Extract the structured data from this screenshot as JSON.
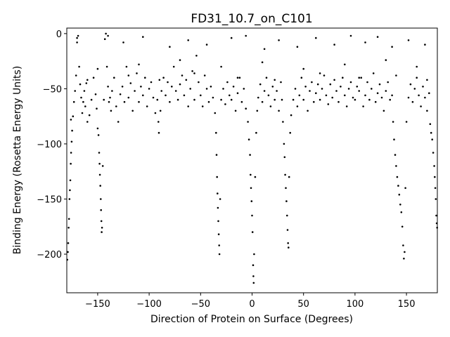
{
  "chart_data": {
    "type": "scatter",
    "title": "FD31_10.7_on_C101",
    "xlabel": "Direction of Protein on Surface (Degrees)",
    "ylabel": "Binding Energy (Rosetta Energy Units)",
    "xlim": [
      -180,
      180
    ],
    "ylim": [
      -235,
      5
    ],
    "xticks": [
      -150,
      -100,
      -50,
      0,
      50,
      100,
      150
    ],
    "yticks": [
      0,
      -50,
      -100,
      -150,
      -200
    ],
    "tick_labels_x": [
      "−150",
      "−100",
      "−50",
      "0",
      "50",
      "100",
      "150"
    ],
    "tick_labels_y": [
      "0",
      "−50",
      "−100",
      "−150",
      "−200"
    ],
    "grid": false,
    "marker_color": "#000000",
    "series": [
      {
        "values": [
          [
            -179.5,
            -205
          ],
          [
            -179,
            -198
          ],
          [
            -178.6,
            -190
          ],
          [
            -178.2,
            -176
          ],
          [
            -177.8,
            -168
          ],
          [
            -177.4,
            -150
          ],
          [
            -177,
            -142
          ],
          [
            -176.6,
            -133
          ],
          [
            -176.2,
            -118
          ],
          [
            -175.8,
            -108
          ],
          [
            -175.3,
            -98
          ],
          [
            -174.8,
            -88
          ],
          [
            -174,
            -75
          ],
          [
            -173,
            -62
          ],
          [
            -172,
            -52
          ],
          [
            -171,
            -38
          ],
          [
            -170,
            -8
          ],
          [
            -169,
            -2
          ],
          [
            -168,
            -30
          ],
          [
            -167,
            -46
          ],
          [
            -166,
            -58
          ],
          [
            -165,
            -72
          ],
          [
            -164,
            -62
          ],
          [
            -163,
            -52
          ],
          [
            -162,
            -66
          ],
          [
            -161,
            -45
          ],
          [
            -160,
            -80
          ],
          [
            -158,
            -74
          ],
          [
            -156,
            -60
          ],
          [
            -154,
            -40
          ],
          [
            -152,
            -55
          ],
          [
            -151,
            -68
          ],
          [
            -150,
            -86
          ],
          [
            -149.2,
            -92
          ],
          [
            -148.6,
            -108
          ],
          [
            -148.2,
            -118
          ],
          [
            -147.8,
            -128
          ],
          [
            -147.4,
            -138
          ],
          [
            -147,
            -150
          ],
          [
            -146.7,
            -160
          ],
          [
            -146.4,
            -170
          ],
          [
            -146.1,
            -180
          ],
          [
            -145.8,
            -176
          ],
          [
            -145,
            -120
          ],
          [
            -144,
            -60
          ],
          [
            -143,
            -5
          ],
          [
            -142,
            0
          ],
          [
            -141,
            -30
          ],
          [
            -140,
            -48
          ],
          [
            -139,
            -62
          ],
          [
            -138,
            -58
          ],
          [
            -137,
            -70
          ],
          [
            -136,
            -52
          ],
          [
            -134,
            -40
          ],
          [
            -132,
            -66
          ],
          [
            -130,
            -80
          ],
          [
            -128,
            -55
          ],
          [
            -126,
            -48
          ],
          [
            -124,
            -62
          ],
          [
            -122,
            -30
          ],
          [
            -120,
            -58
          ],
          [
            -118,
            -45
          ],
          [
            -116,
            -70
          ],
          [
            -114,
            -52
          ],
          [
            -112,
            -36
          ],
          [
            -110,
            -62
          ],
          [
            -108,
            -48
          ],
          [
            -106,
            -56
          ],
          [
            -104,
            -40
          ],
          [
            -102,
            -66
          ],
          [
            -100,
            -50
          ],
          [
            -98,
            -44
          ],
          [
            -96,
            -58
          ],
          [
            -94,
            -72
          ],
          [
            -92,
            -60
          ],
          [
            -91,
            -80
          ],
          [
            -90.5,
            -90
          ],
          [
            -89,
            -70
          ],
          [
            -88,
            -52
          ],
          [
            -86,
            -40
          ],
          [
            -84,
            -56
          ],
          [
            -82,
            -44
          ],
          [
            -80,
            -62
          ],
          [
            -78,
            -48
          ],
          [
            -76,
            -30
          ],
          [
            -74,
            -52
          ],
          [
            -72,
            -60
          ],
          [
            -70,
            -46
          ],
          [
            -68,
            -38
          ],
          [
            -66,
            -56
          ],
          [
            -64,
            -42
          ],
          [
            -62,
            -66
          ],
          [
            -60,
            -50
          ],
          [
            -58,
            -34
          ],
          [
            -56,
            -60
          ],
          [
            -54,
            -20
          ],
          [
            -52,
            -44
          ],
          [
            -50,
            -56
          ],
          [
            -48,
            -66
          ],
          [
            -46,
            -38
          ],
          [
            -44,
            -50
          ],
          [
            -42,
            -62
          ],
          [
            -40,
            -48
          ],
          [
            -38,
            -58
          ],
          [
            -36,
            -72
          ],
          [
            -35,
            -90
          ],
          [
            -34.5,
            -110
          ],
          [
            -34,
            -130
          ],
          [
            -33.6,
            -145
          ],
          [
            -33.2,
            -158
          ],
          [
            -32.8,
            -170
          ],
          [
            -32.4,
            -182
          ],
          [
            -32,
            -192
          ],
          [
            -31.7,
            -200
          ],
          [
            -31,
            -150
          ],
          [
            -30,
            -60
          ],
          [
            -28,
            -50
          ],
          [
            -26,
            -64
          ],
          [
            -24,
            -44
          ],
          [
            -22,
            -56
          ],
          [
            -20,
            -60
          ],
          [
            -18,
            -48
          ],
          [
            -16,
            -70
          ],
          [
            -14,
            -54
          ],
          [
            -12,
            -40
          ],
          [
            -10,
            -62
          ],
          [
            -8,
            -50
          ],
          [
            -6,
            -68
          ],
          [
            -4,
            -80
          ],
          [
            -3,
            -96
          ],
          [
            -2,
            -110
          ],
          [
            -1.5,
            -128
          ],
          [
            -1,
            -140
          ],
          [
            -0.5,
            -152
          ],
          [
            0,
            -165
          ],
          [
            0.5,
            -180
          ],
          [
            1,
            -210
          ],
          [
            1.3,
            -220
          ],
          [
            1.6,
            -226
          ],
          [
            2,
            -200
          ],
          [
            3,
            -130
          ],
          [
            4,
            -90
          ],
          [
            5,
            -70
          ],
          [
            6,
            -58
          ],
          [
            8,
            -46
          ],
          [
            10,
            -62
          ],
          [
            12,
            -52
          ],
          [
            14,
            -40
          ],
          [
            16,
            -56
          ],
          [
            18,
            -66
          ],
          [
            20,
            -48
          ],
          [
            22,
            -60
          ],
          [
            24,
            -52
          ],
          [
            26,
            -70
          ],
          [
            28,
            -44
          ],
          [
            29,
            -60
          ],
          [
            30,
            -80
          ],
          [
            31,
            -100
          ],
          [
            31.6,
            -112
          ],
          [
            32.2,
            -128
          ],
          [
            32.8,
            -140
          ],
          [
            33.4,
            -152
          ],
          [
            34,
            -165
          ],
          [
            34.5,
            -178
          ],
          [
            35,
            -190
          ],
          [
            35.4,
            -194
          ],
          [
            36,
            -130
          ],
          [
            37,
            -90
          ],
          [
            38,
            -74
          ],
          [
            40,
            -60
          ],
          [
            42,
            -50
          ],
          [
            44,
            -66
          ],
          [
            46,
            -56
          ],
          [
            48,
            -40
          ],
          [
            50,
            -60
          ],
          [
            52,
            -48
          ],
          [
            54,
            -70
          ],
          [
            56,
            -52
          ],
          [
            58,
            -44
          ],
          [
            60,
            -62
          ],
          [
            62,
            -54
          ],
          [
            64,
            -46
          ],
          [
            66,
            -60
          ],
          [
            68,
            -50
          ],
          [
            70,
            -38
          ],
          [
            72,
            -56
          ],
          [
            74,
            -64
          ],
          [
            76,
            -46
          ],
          [
            78,
            -58
          ],
          [
            80,
            -42
          ],
          [
            82,
            -52
          ],
          [
            84,
            -62
          ],
          [
            86,
            -48
          ],
          [
            88,
            -40
          ],
          [
            90,
            -56
          ],
          [
            92,
            -66
          ],
          [
            94,
            -50
          ],
          [
            96,
            -44
          ],
          [
            98,
            -58
          ],
          [
            100,
            -60
          ],
          [
            102,
            -48
          ],
          [
            104,
            -52
          ],
          [
            106,
            -40
          ],
          [
            108,
            -66
          ],
          [
            110,
            -56
          ],
          [
            112,
            -44
          ],
          [
            114,
            -60
          ],
          [
            116,
            -50
          ],
          [
            118,
            -36
          ],
          [
            120,
            -62
          ],
          [
            122,
            -54
          ],
          [
            124,
            -46
          ],
          [
            126,
            -58
          ],
          [
            128,
            -70
          ],
          [
            130,
            -52
          ],
          [
            132,
            -44
          ],
          [
            134,
            -60
          ],
          [
            136,
            -56
          ],
          [
            137,
            -80
          ],
          [
            138,
            -96
          ],
          [
            139,
            -110
          ],
          [
            140,
            -120
          ],
          [
            141,
            -130
          ],
          [
            142,
            -138
          ],
          [
            143,
            -146
          ],
          [
            144,
            -155
          ],
          [
            145,
            -162
          ],
          [
            146,
            -175
          ],
          [
            146.8,
            -192
          ],
          [
            147.5,
            -204
          ],
          [
            148.2,
            -198
          ],
          [
            149,
            -140
          ],
          [
            150,
            -80
          ],
          [
            152,
            -58
          ],
          [
            154,
            -46
          ],
          [
            156,
            -62
          ],
          [
            158,
            -50
          ],
          [
            160,
            -40
          ],
          [
            162,
            -56
          ],
          [
            164,
            -66
          ],
          [
            166,
            -48
          ],
          [
            168,
            -58
          ],
          [
            170,
            -70
          ],
          [
            172,
            -54
          ],
          [
            173,
            -82
          ],
          [
            174,
            -90
          ],
          [
            175,
            -96
          ],
          [
            176,
            -108
          ],
          [
            177,
            -120
          ],
          [
            177.5,
            -130
          ],
          [
            178,
            -140
          ],
          [
            178.5,
            -150
          ],
          [
            179,
            -165
          ],
          [
            179.4,
            -172
          ],
          [
            179.8,
            -176
          ],
          [
            -170,
            -4
          ],
          [
            -140,
            -2
          ],
          [
            -125,
            -8
          ],
          [
            -106,
            -3
          ],
          [
            -80,
            -12
          ],
          [
            -62,
            -6
          ],
          [
            -44,
            -10
          ],
          [
            -20,
            -4
          ],
          [
            -6,
            -2
          ],
          [
            12,
            -14
          ],
          [
            26,
            -6
          ],
          [
            44,
            -12
          ],
          [
            62,
            -4
          ],
          [
            80,
            -10
          ],
          [
            96,
            -2
          ],
          [
            110,
            -8
          ],
          [
            122,
            -3
          ],
          [
            136,
            -12
          ],
          [
            152,
            -6
          ],
          [
            168,
            -10
          ],
          [
            -150,
            -32
          ],
          [
            -110,
            -28
          ],
          [
            -70,
            -24
          ],
          [
            -30,
            -30
          ],
          [
            10,
            -26
          ],
          [
            50,
            -32
          ],
          [
            90,
            -28
          ],
          [
            130,
            -24
          ],
          [
            160,
            -30
          ],
          [
            -160,
            -42
          ],
          [
            -120,
            -38
          ],
          [
            -90,
            -42
          ],
          [
            -56,
            -36
          ],
          [
            -14,
            -40
          ],
          [
            22,
            -42
          ],
          [
            66,
            -36
          ],
          [
            104,
            -40
          ],
          [
            140,
            -38
          ],
          [
            170,
            -42
          ],
          [
            -176,
            -78
          ]
        ]
      }
    ]
  }
}
